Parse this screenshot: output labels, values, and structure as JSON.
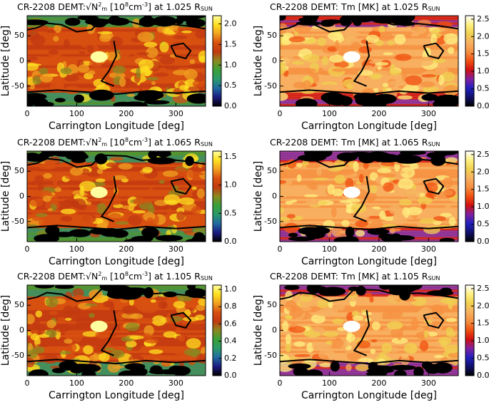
{
  "chart_data": [
    {
      "type": "heatmap",
      "title": [
        {
          "text": "CR-2208 DEMT:",
          "style": "normal"
        },
        {
          "text": "√N",
          "style": "normal"
        },
        {
          "text": "2",
          "style": "sup"
        },
        {
          "text": "m",
          "style": "sub"
        },
        {
          "text": " [10",
          "style": "normal"
        },
        {
          "text": "8",
          "style": "sup"
        },
        {
          "text": "cm",
          "style": "normal"
        },
        {
          "text": "-3",
          "style": "sup"
        },
        {
          "text": "] at 1.025 R",
          "style": "normal"
        },
        {
          "text": "SUN",
          "style": "sub"
        }
      ],
      "xlabel": "Carrington Longitude [deg]",
      "ylabel": "Latitude [deg]",
      "xlim": [
        0,
        360
      ],
      "ylim": [
        -90,
        90
      ],
      "xticks": [
        0,
        100,
        200,
        300
      ],
      "yticks": [
        -50,
        0,
        50
      ],
      "zlim": [
        0,
        2.2
      ],
      "zticks": [
        {
          "value": 0,
          "label": "0.0"
        },
        {
          "value": 0.5,
          "label": "0.5"
        },
        {
          "value": 1,
          "label": "1.0"
        },
        {
          "value": 1.5,
          "label": "1.5"
        },
        {
          "value": 2,
          "label": "2.0"
        }
      ],
      "colormap": [
        "#000000",
        "#1a1a80",
        "#1f6aa0",
        "#2a9a6a",
        "#3aa03a",
        "#8a8a20",
        "#c23a10",
        "#d85010",
        "#f0a020",
        "#ffe020",
        "#ffffa0"
      ]
    },
    {
      "type": "heatmap",
      "title": [
        {
          "text": "CR-2208 DEMT: Tm [MK] at 1.025 R",
          "style": "normal"
        },
        {
          "text": "SUN",
          "style": "sub"
        }
      ],
      "xlabel": "Carrington Longitude [deg]",
      "ylabel": "Latitude [deg]",
      "xlim": [
        0,
        360
      ],
      "ylim": [
        -90,
        90
      ],
      "xticks": [
        0,
        100,
        200,
        300
      ],
      "yticks": [
        -50,
        0,
        50
      ],
      "zlim": [
        0,
        2.6
      ],
      "zticks": [
        {
          "value": 0,
          "label": "0.0"
        },
        {
          "value": 0.5,
          "label": "0.5"
        },
        {
          "value": 1,
          "label": "1.0"
        },
        {
          "value": 1.5,
          "label": "1.5"
        },
        {
          "value": 2,
          "label": "2.0"
        },
        {
          "value": 2.5,
          "label": "2.5"
        }
      ],
      "colormap": [
        "#000000",
        "#10106a",
        "#2020c0",
        "#8020a0",
        "#d01010",
        "#f05010",
        "#f59040",
        "#f7b060",
        "#f0d050",
        "#fff080",
        "#ffffff"
      ]
    },
    {
      "type": "heatmap",
      "title": [
        {
          "text": "CR-2208 DEMT:",
          "style": "normal"
        },
        {
          "text": "√N",
          "style": "normal"
        },
        {
          "text": "2",
          "style": "sup"
        },
        {
          "text": "m",
          "style": "sub"
        },
        {
          "text": " [10",
          "style": "normal"
        },
        {
          "text": "8",
          "style": "sup"
        },
        {
          "text": "cm",
          "style": "normal"
        },
        {
          "text": "-3",
          "style": "sup"
        },
        {
          "text": "] at 1.065 R",
          "style": "normal"
        },
        {
          "text": "SUN",
          "style": "sub"
        }
      ],
      "xlabel": "Carrington Longitude [deg]",
      "ylabel": "Latitude [deg]",
      "xlim": [
        0,
        360
      ],
      "ylim": [
        -90,
        90
      ],
      "xticks": [
        0,
        100,
        200,
        300
      ],
      "yticks": [
        -50,
        0,
        50
      ],
      "zlim": [
        0,
        1.6
      ],
      "zticks": [
        {
          "value": 0,
          "label": "0.0"
        },
        {
          "value": 0.5,
          "label": "0.5"
        },
        {
          "value": 1,
          "label": "1.0"
        },
        {
          "value": 1.5,
          "label": "1.5"
        }
      ],
      "colormap": [
        "#000000",
        "#1a1a80",
        "#1f6aa0",
        "#2a9a6a",
        "#3aa03a",
        "#8a8a20",
        "#c23a10",
        "#d85010",
        "#f0a020",
        "#ffe020",
        "#ffffa0"
      ]
    },
    {
      "type": "heatmap",
      "title": [
        {
          "text": "CR-2208 DEMT: Tm [MK] at 1.065 R",
          "style": "normal"
        },
        {
          "text": "SUN",
          "style": "sub"
        }
      ],
      "xlabel": "Carrington Longitude [deg]",
      "ylabel": "Latitude [deg]",
      "xlim": [
        0,
        360
      ],
      "ylim": [
        -90,
        90
      ],
      "xticks": [
        0,
        100,
        200,
        300
      ],
      "yticks": [
        -50,
        0,
        50
      ],
      "zlim": [
        0,
        2.6
      ],
      "zticks": [
        {
          "value": 0,
          "label": "0.0"
        },
        {
          "value": 0.5,
          "label": "0.5"
        },
        {
          "value": 1,
          "label": "1.0"
        },
        {
          "value": 1.5,
          "label": "1.5"
        },
        {
          "value": 2,
          "label": "2.0"
        },
        {
          "value": 2.5,
          "label": "2.5"
        }
      ],
      "colormap": [
        "#000000",
        "#10106a",
        "#2020c0",
        "#8020a0",
        "#d01010",
        "#f05010",
        "#f59040",
        "#f7b060",
        "#f0d050",
        "#fff080",
        "#ffffff"
      ]
    },
    {
      "type": "heatmap",
      "title": [
        {
          "text": "CR-2208 DEMT:",
          "style": "normal"
        },
        {
          "text": "√N",
          "style": "normal"
        },
        {
          "text": "2",
          "style": "sup"
        },
        {
          "text": "m",
          "style": "sub"
        },
        {
          "text": " [10",
          "style": "normal"
        },
        {
          "text": "8",
          "style": "sup"
        },
        {
          "text": "cm",
          "style": "normal"
        },
        {
          "text": "-3",
          "style": "sup"
        },
        {
          "text": "] at 1.105 R",
          "style": "normal"
        },
        {
          "text": "SUN",
          "style": "sub"
        }
      ],
      "xlabel": "Carrington Longitude [deg]",
      "ylabel": "Latitude [deg]",
      "xlim": [
        0,
        360
      ],
      "ylim": [
        -90,
        90
      ],
      "xticks": [
        0,
        100,
        200,
        300
      ],
      "yticks": [
        -50,
        0,
        50
      ],
      "zlim": [
        0,
        1.05
      ],
      "zticks": [
        {
          "value": 0,
          "label": "0.0"
        },
        {
          "value": 0.2,
          "label": "0.2"
        },
        {
          "value": 0.4,
          "label": "0.4"
        },
        {
          "value": 0.6,
          "label": "0.6"
        },
        {
          "value": 0.8,
          "label": "0.8"
        },
        {
          "value": 1,
          "label": "1.0"
        }
      ],
      "colormap": [
        "#000000",
        "#1a1a80",
        "#1f6aa0",
        "#2a9a6a",
        "#3aa03a",
        "#8a8a20",
        "#c23a10",
        "#d85010",
        "#f0a020",
        "#ffe020",
        "#ffffa0"
      ]
    },
    {
      "type": "heatmap",
      "title": [
        {
          "text": "CR-2208 DEMT: Tm [MK] at 1.105 R",
          "style": "normal"
        },
        {
          "text": "SUN",
          "style": "sub"
        }
      ],
      "xlabel": "Carrington Longitude [deg]",
      "ylabel": "Latitude [deg]",
      "xlim": [
        0,
        360
      ],
      "ylim": [
        -90,
        90
      ],
      "xticks": [
        0,
        100,
        200,
        300
      ],
      "yticks": [
        -50,
        0,
        50
      ],
      "zlim": [
        0,
        2.6
      ],
      "zticks": [
        {
          "value": 0,
          "label": "0.0"
        },
        {
          "value": 0.5,
          "label": "0.5"
        },
        {
          "value": 1,
          "label": "1.0"
        },
        {
          "value": 1.5,
          "label": "1.5"
        },
        {
          "value": 2,
          "label": "2.0"
        },
        {
          "value": 2.5,
          "label": "2.5"
        }
      ],
      "colormap": [
        "#000000",
        "#10106a",
        "#2020c0",
        "#8020a0",
        "#d01010",
        "#f05010",
        "#f59040",
        "#f7b060",
        "#f0d050",
        "#fff080",
        "#ffffff"
      ]
    }
  ]
}
